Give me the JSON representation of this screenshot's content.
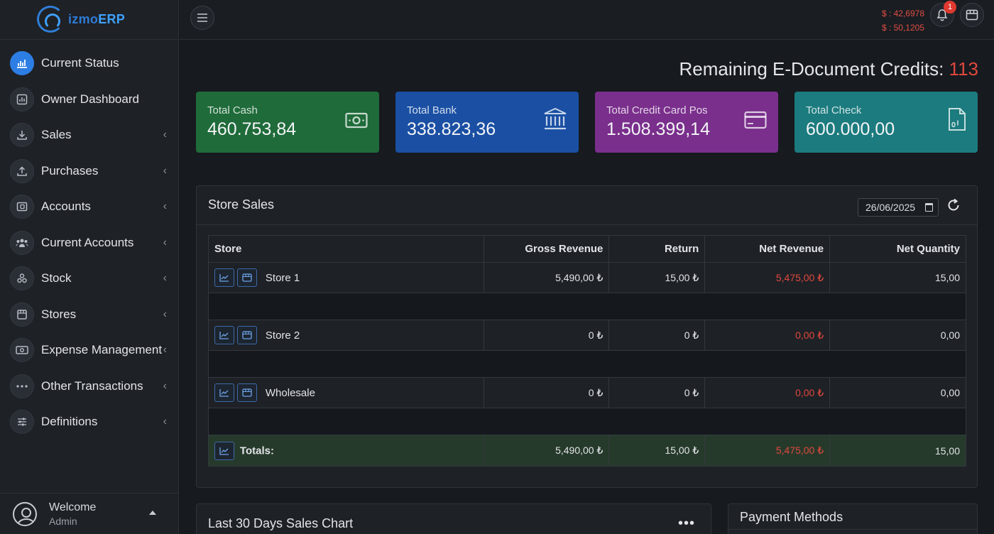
{
  "app": {
    "logo_prefix": "izmo",
    "logo_suffix": "ERP"
  },
  "sidebar": {
    "items": [
      {
        "label": "Current Status",
        "icon": "chart-icon",
        "active": true,
        "chevron": false
      },
      {
        "label": "Owner Dashboard",
        "icon": "dashboard-icon",
        "active": false,
        "chevron": false
      },
      {
        "label": "Sales",
        "icon": "download-icon",
        "active": false,
        "chevron": true
      },
      {
        "label": "Purchases",
        "icon": "upload-icon",
        "active": false,
        "chevron": true
      },
      {
        "label": "Accounts",
        "icon": "wallet-icon",
        "active": false,
        "chevron": true
      },
      {
        "label": "Current Accounts",
        "icon": "people-icon",
        "active": false,
        "chevron": true
      },
      {
        "label": "Stock",
        "icon": "boxes-icon",
        "active": false,
        "chevron": true
      },
      {
        "label": "Stores",
        "icon": "store-icon",
        "active": false,
        "chevron": true
      },
      {
        "label": "Expense Management",
        "icon": "money-icon",
        "active": false,
        "chevron": true
      },
      {
        "label": "Other Transactions",
        "icon": "more-icon",
        "active": false,
        "chevron": true
      },
      {
        "label": "Definitions",
        "icon": "sliders-icon",
        "active": false,
        "chevron": true
      }
    ],
    "user": {
      "welcome": "Welcome",
      "role": "Admin"
    }
  },
  "topbar": {
    "rates": [
      "$ : 42,6978",
      "$ : 50,1205"
    ],
    "notification_count": "1"
  },
  "credits": {
    "label": "Remaining E-Document Credits:",
    "value": "113"
  },
  "cards": [
    {
      "title": "Total Cash",
      "value": "460.753,84",
      "icon": "cash-icon",
      "color": "#1f6b3a"
    },
    {
      "title": "Total Bank",
      "value": "338.823,36",
      "icon": "bank-icon",
      "color": "#1a4fa3"
    },
    {
      "title": "Total Credit Card Pos",
      "value": "1.508.399,14",
      "icon": "credit-card-icon",
      "color": "#7a2f8c"
    },
    {
      "title": "Total Check",
      "value": "600.000,00",
      "icon": "document-icon",
      "color": "#1c7b7e"
    }
  ],
  "store_sales": {
    "title": "Store Sales",
    "date": "26/06/2025",
    "columns": [
      "Store",
      "Gross Revenue",
      "Return",
      "Net Revenue",
      "Net Quantity"
    ],
    "rows": [
      {
        "store": "Store 1",
        "gross": "5,490,00 ₺",
        "return": "15,00 ₺",
        "net": "5,475,00 ₺",
        "qty": "15,00"
      },
      {
        "store": "Store 2",
        "gross": "0 ₺",
        "return": "0 ₺",
        "net": "0,00 ₺",
        "qty": "0,00"
      },
      {
        "store": "Wholesale",
        "gross": "0 ₺",
        "return": "0 ₺",
        "net": "0,00 ₺",
        "qty": "0,00"
      }
    ],
    "totals": {
      "label": "Totals:",
      "gross": "5,490,00 ₺",
      "return": "15,00 ₺",
      "net": "5,475,00 ₺",
      "qty": "15,00"
    }
  },
  "chart_panel": {
    "title": "Last 30 Days Sales Chart",
    "menu": "•••"
  },
  "payment_panel": {
    "title": "Payment Methods"
  },
  "colors": {
    "accent": "#2d7ee4",
    "negative": "#e0483d",
    "background": "#171a1f"
  }
}
